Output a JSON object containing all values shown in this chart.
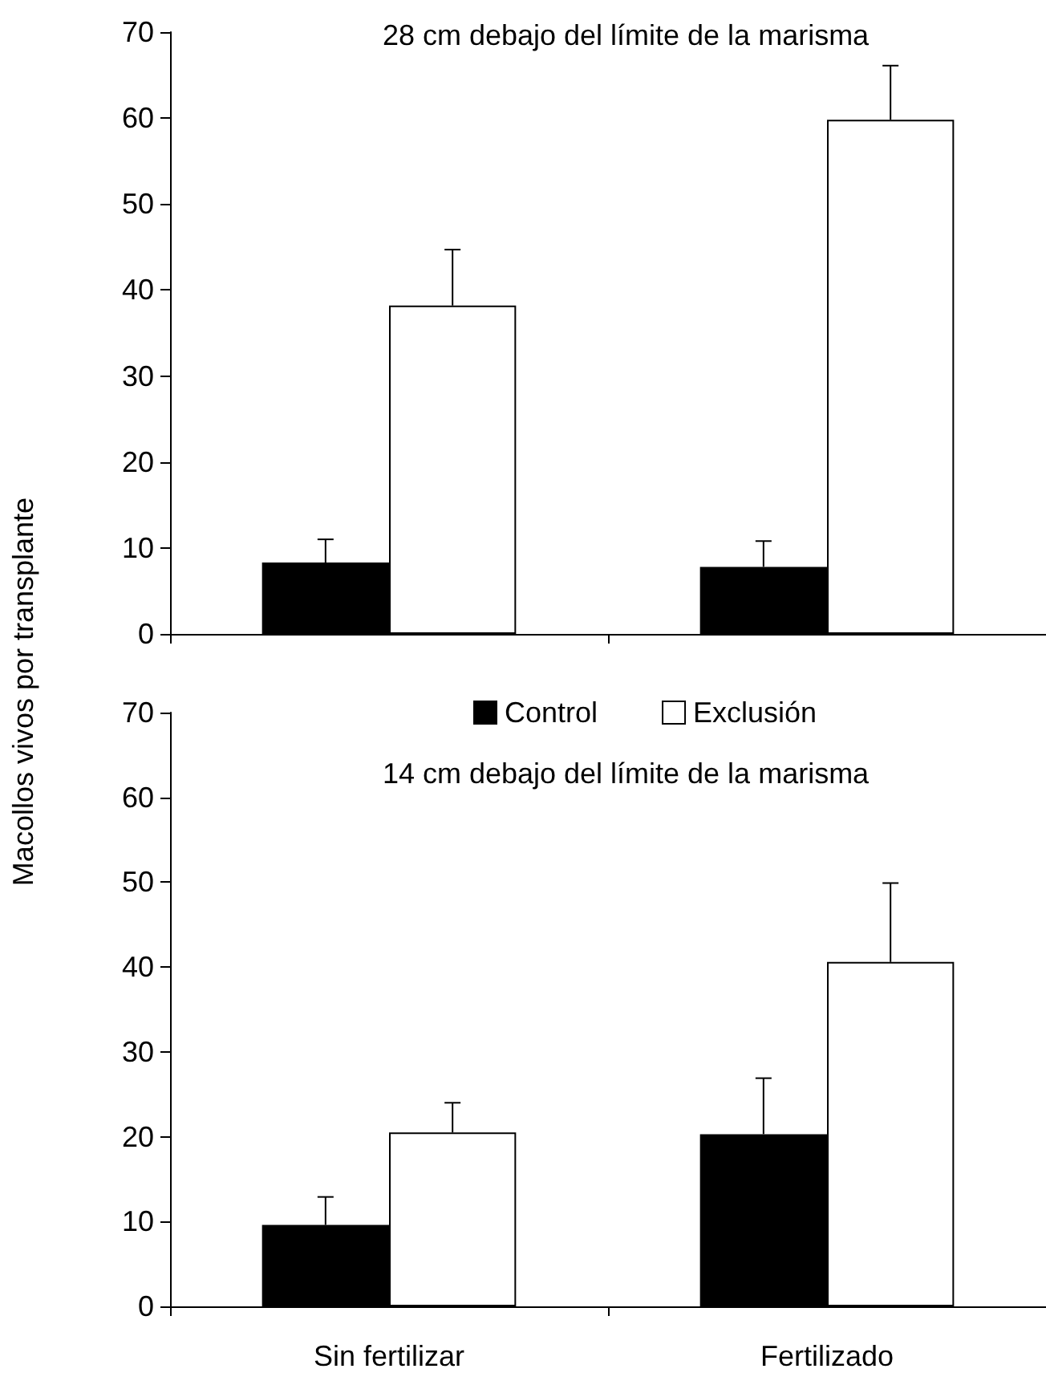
{
  "chart_data": [
    {
      "type": "bar",
      "title": "28 cm debajo del límite de la marisma",
      "ylabel": "Macollos vivos por transplante",
      "categories": [
        null,
        null
      ],
      "series": [
        {
          "color": "#000000",
          "values": [
            8.3,
            7.8
          ],
          "errors": [
            [
              8.3,
              11.0
            ],
            [
              7.8,
              10.8
            ]
          ]
        },
        {
          "color": "#ffffff",
          "values": [
            38.2,
            59.8
          ],
          "errors": [
            [
              38.2,
              44.7
            ],
            [
              59.8,
              66.1
            ]
          ]
        }
      ],
      "ylim": [
        0,
        70
      ],
      "yticks": [
        0,
        10,
        20,
        30,
        40,
        50,
        60,
        70
      ],
      "grid": false,
      "legend": false,
      "tick_labels": "y"
    },
    {
      "type": "bar",
      "title": "14 cm debajo del límite de la marisma",
      "categories": [
        "Sin fertilizar",
        "Fertilizado"
      ],
      "series": [
        {
          "name": "Control",
          "color": "#000000",
          "values": [
            9.6,
            20.3
          ],
          "errors": [
            [
              9.6,
              12.9
            ],
            [
              20.3,
              26.9
            ]
          ]
        },
        {
          "name": "Exclusión",
          "color": "#ffffff",
          "values": [
            20.5,
            40.6
          ],
          "errors": [
            [
              20.5,
              24.0
            ],
            [
              40.6,
              49.9
            ]
          ]
        }
      ],
      "ylim": [
        0,
        70
      ],
      "yticks": [
        0,
        10,
        20,
        30,
        40,
        50,
        60,
        70
      ],
      "grid": false,
      "legend": "top"
    }
  ]
}
